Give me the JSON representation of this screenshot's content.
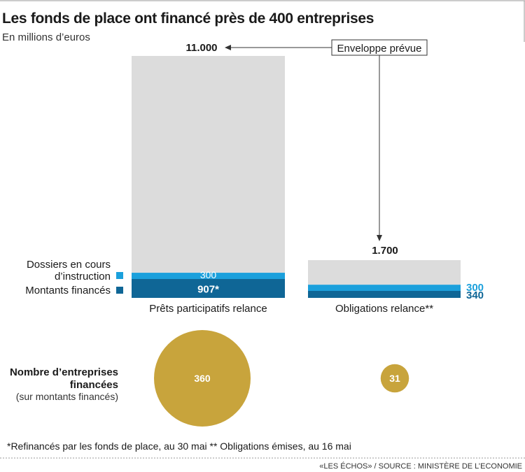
{
  "title": "Les fonds de place ont financé près de 400 entreprises",
  "subtitle": "En millions d’euros",
  "colors": {
    "envelope": "#dcdcdc",
    "instruction": "#1ba0dc",
    "financed": "#0f6696",
    "bubble": "#c8a43c",
    "text": "#1a1a1a"
  },
  "envelope_label": "Enveloppe prévue",
  "legend": {
    "instruction_line1": "Dossiers en cours",
    "instruction_line2": "d’instruction",
    "financed": "Montants financés"
  },
  "chart_data": {
    "type": "bar",
    "stacked": true,
    "categories": [
      "Prêts participatifs relance",
      "Obligations relance**"
    ],
    "series": [
      {
        "name": "Montants financés",
        "values": [
          907,
          340
        ],
        "labels": [
          "907*",
          "340"
        ]
      },
      {
        "name": "Dossiers en cours d’instruction",
        "values": [
          300,
          300
        ],
        "labels": [
          "300",
          "300"
        ]
      },
      {
        "name": "Enveloppe prévue",
        "values": [
          11000,
          1700
        ],
        "labels": [
          "11.000",
          "1.700"
        ]
      }
    ]
  },
  "bubbles": {
    "title_line1": "Nombre d’entreprises",
    "title_line2": "financées",
    "subtitle": "(sur montants financés)",
    "values": [
      360,
      31
    ],
    "labels": [
      "360",
      "31"
    ]
  },
  "footnote": "*Refinancés par les fonds de place, au 30 mai ** Obligations émises, au 16 mai",
  "source": "«LES ÉCHOS» / SOURCE : MINISTÈRE DE L’ECONOMIE"
}
